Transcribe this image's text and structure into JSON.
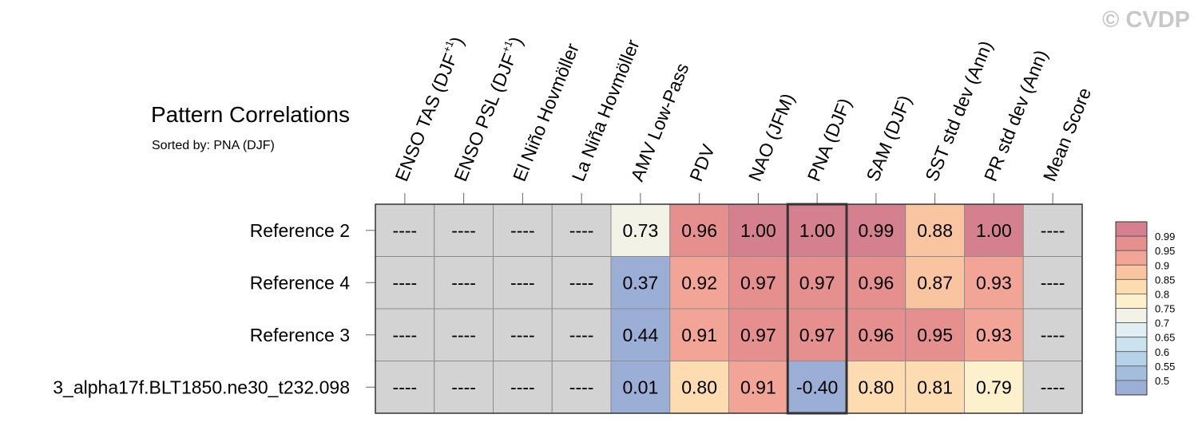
{
  "watermark": "© CVDP",
  "chart_data": {
    "type": "heatmap",
    "title": "Pattern Correlations",
    "subtitle": "Sorted by: PNA (DJF)",
    "sort_column_index": 7,
    "columns": [
      {
        "label": "ENSO TAS (DJF",
        "sup": "+1",
        "suffix": ")"
      },
      {
        "label": "ENSO PSL (DJF",
        "sup": "+1",
        "suffix": ")"
      },
      {
        "label": "El Niño Hovmöller",
        "sup": "",
        "suffix": ""
      },
      {
        "label": "La Niña Hovmöller",
        "sup": "",
        "suffix": ""
      },
      {
        "label": "AMV Low-Pass",
        "sup": "",
        "suffix": ""
      },
      {
        "label": "PDV",
        "sup": "",
        "suffix": ""
      },
      {
        "label": "NAO (JFM)",
        "sup": "",
        "suffix": ""
      },
      {
        "label": "PNA (DJF)",
        "sup": "",
        "suffix": ""
      },
      {
        "label": "SAM (DJF)",
        "sup": "",
        "suffix": ""
      },
      {
        "label": "SST std dev (Ann)",
        "sup": "",
        "suffix": ""
      },
      {
        "label": "PR std dev (Ann)",
        "sup": "",
        "suffix": ""
      },
      {
        "label": "Mean Score",
        "sup": "",
        "suffix": ""
      }
    ],
    "rows": [
      {
        "label": "Reference 2",
        "values": [
          "----",
          "----",
          "----",
          "----",
          "0.73",
          "0.96",
          "1.00",
          "1.00",
          "0.99",
          "0.88",
          "1.00",
          "----"
        ]
      },
      {
        "label": "Reference 4",
        "values": [
          "----",
          "----",
          "----",
          "----",
          "0.37",
          "0.92",
          "0.97",
          "0.97",
          "0.96",
          "0.87",
          "0.93",
          "----"
        ]
      },
      {
        "label": "Reference 3",
        "values": [
          "----",
          "----",
          "----",
          "----",
          "0.44",
          "0.91",
          "0.97",
          "0.97",
          "0.96",
          "0.95",
          "0.93",
          "----"
        ]
      },
      {
        "label": "3_alpha17f.BLT1850.ne30_t232.098",
        "values": [
          "----",
          "----",
          "----",
          "----",
          "0.01",
          "0.80",
          "0.91",
          "-0.40",
          "0.80",
          "0.81",
          "0.79",
          "----"
        ]
      }
    ],
    "missing_color": "#d3d3d3",
    "colorbar": {
      "labels": [
        "0.99",
        "0.95",
        "0.9",
        "0.85",
        "0.8",
        "0.75",
        "0.7",
        "0.65",
        "0.6",
        "0.55",
        "0.5"
      ],
      "bins": [
        {
          "min": 0.99,
          "color": "#d4808f"
        },
        {
          "min": 0.95,
          "color": "#e58f8f"
        },
        {
          "min": 0.9,
          "color": "#f2a596"
        },
        {
          "min": 0.85,
          "color": "#f9c4a0"
        },
        {
          "min": 0.8,
          "color": "#fddcb2"
        },
        {
          "min": 0.75,
          "color": "#fdf0cc"
        },
        {
          "min": 0.7,
          "color": "#f2f2e6"
        },
        {
          "min": 0.65,
          "color": "#e1eff4"
        },
        {
          "min": 0.6,
          "color": "#cbe3ee"
        },
        {
          "min": 0.55,
          "color": "#b5d2e8"
        },
        {
          "min": 0.5,
          "color": "#a3bddd"
        },
        {
          "min": -10,
          "color": "#9aaed6"
        }
      ]
    }
  }
}
